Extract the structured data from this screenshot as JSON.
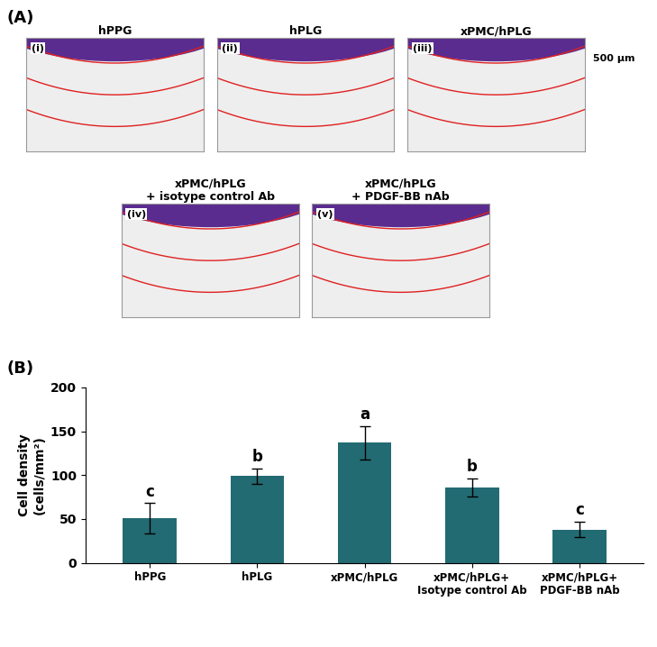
{
  "panel_a": {
    "label": "(A)",
    "scale_label": "500 µm",
    "images": [
      {
        "index": "(i)",
        "title": "hPPG"
      },
      {
        "index": "(ii)",
        "title": "hPLG"
      },
      {
        "index": "(iii)",
        "title": "xPMC/hPLG"
      },
      {
        "index": "(iv)",
        "title": "xPMC/hPLG\n+ isotype control Ab"
      },
      {
        "index": "(v)",
        "title": "xPMC/hPLG\n+ PDGF-BB nAb"
      }
    ]
  },
  "chart_data": {
    "type": "bar",
    "annotations": [
      "(B)"
    ],
    "y_label": "Cell density\n(cells/mm²)",
    "categories": [
      "hPPG",
      "hPLG",
      "xPMC/hPLG",
      "xPMC/hPLG+\nIsotype control Ab",
      "xPMC/hPLG+\nPDGF-BB nAb"
    ],
    "values": [
      51,
      99,
      137,
      86,
      38
    ],
    "errors": [
      17,
      9,
      19,
      10,
      9
    ],
    "significance": [
      "c",
      "b",
      "a",
      "b",
      "c"
    ],
    "color": "#236b73",
    "ylim": [
      0,
      200
    ],
    "yticks": [
      0,
      50,
      100,
      150,
      200
    ],
    "grid": false
  }
}
